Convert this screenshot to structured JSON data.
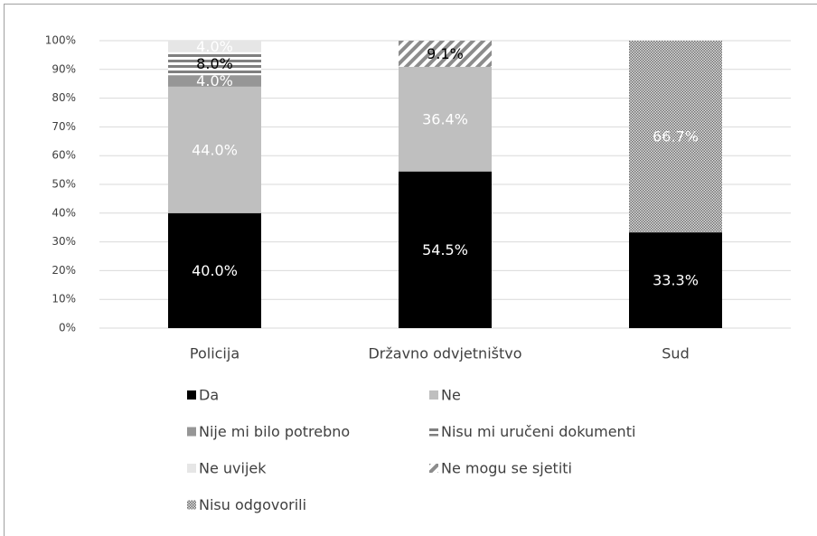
{
  "chart_data": {
    "type": "stacked_bar",
    "categories": [
      "Policija",
      "Državno odvjetništvo",
      "Sud"
    ],
    "series": [
      {
        "name": "Da",
        "color": "#000000",
        "label_color": "#ffffff",
        "values": [
          40.0,
          54.5,
          33.3
        ],
        "value_labels": [
          "40.0%",
          "54.5%",
          "33.3%"
        ]
      },
      {
        "name": "Ne",
        "color": "#bfbfbf",
        "label_color": "#ffffff",
        "values": [
          44.0,
          36.4,
          null
        ],
        "value_labels": [
          "44.0%",
          "36.4%",
          null
        ]
      },
      {
        "name": "Nije mi bilo potrebno",
        "color": "#969696",
        "label_color": "#ffffff",
        "values": [
          4.0,
          null,
          null
        ],
        "value_labels": [
          "4.0%",
          null,
          null
        ]
      },
      {
        "name": "Nisu mi uručeni dokumenti",
        "color": "#808080",
        "pattern": "horizontal",
        "label_color": "#000000",
        "values": [
          8.0,
          null,
          null
        ],
        "value_labels": [
          "8.0%",
          null,
          null
        ]
      },
      {
        "name": "Ne uvijek",
        "color": "#e6e6e6",
        "label_color": "#ffffff",
        "values": [
          4.0,
          null,
          null
        ],
        "value_labels": [
          "4.0%",
          null,
          null
        ]
      },
      {
        "name": "Ne mogu se sjetiti",
        "color": "#8c8c8c",
        "pattern": "diagonal",
        "label_color": "#000000",
        "values": [
          null,
          9.1,
          null
        ],
        "value_labels": [
          null,
          "9.1%",
          null
        ]
      },
      {
        "name": "Nisu odgovorili",
        "color": "#808080",
        "pattern": "dots",
        "label_color": "#ffffff",
        "values": [
          null,
          null,
          66.7
        ],
        "value_labels": [
          null,
          null,
          "66.7%"
        ]
      }
    ],
    "ylim": [
      0,
      100
    ],
    "yticks": [
      {
        "value": 0,
        "label": "0%"
      },
      {
        "value": 10,
        "label": "10%"
      },
      {
        "value": 20,
        "label": "20%"
      },
      {
        "value": 30,
        "label": "30%"
      },
      {
        "value": 40,
        "label": "40%"
      },
      {
        "value": 50,
        "label": "50%"
      },
      {
        "value": 60,
        "label": "60%"
      },
      {
        "value": 70,
        "label": "70%"
      },
      {
        "value": 80,
        "label": "80%"
      },
      {
        "value": 90,
        "label": "90%"
      },
      {
        "value": 100,
        "label": "100%"
      }
    ],
    "grid": true,
    "legend": "bottom"
  }
}
